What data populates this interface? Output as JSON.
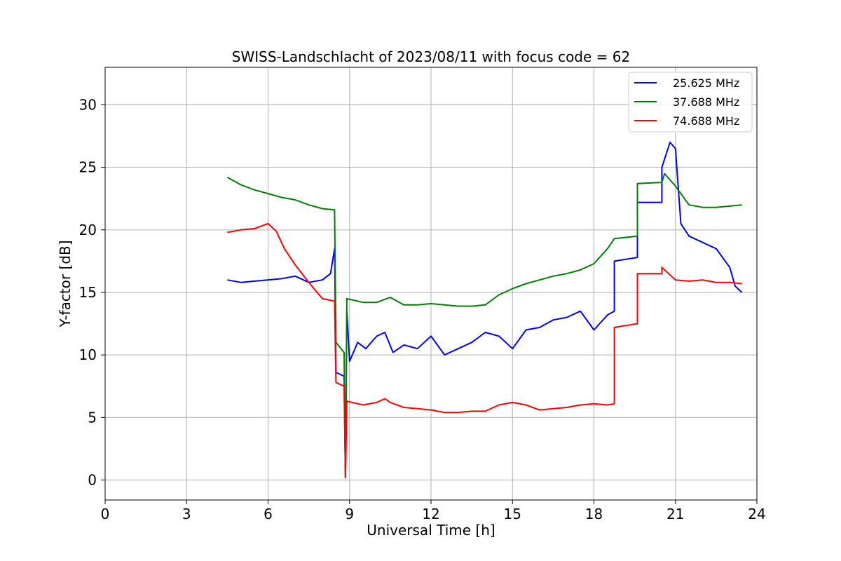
{
  "chart_data": {
    "type": "line",
    "title": "SWISS-Landschlacht of 2023/08/11 with focus code = 62",
    "xlabel": "Universal Time [h]",
    "ylabel": "Y-factor [dB]",
    "xlim": [
      0,
      24
    ],
    "ylim": [
      -1.6,
      33
    ],
    "xticks": [
      0,
      3,
      6,
      9,
      12,
      15,
      18,
      21,
      24
    ],
    "yticks": [
      0,
      5,
      10,
      15,
      20,
      25,
      30
    ],
    "grid": true,
    "legend_position": "top-right",
    "series": [
      {
        "name": "25.625 MHz",
        "color": "#0000ff",
        "points": [
          [
            4.5,
            16.0
          ],
          [
            5.0,
            15.8
          ],
          [
            5.5,
            15.9
          ],
          [
            6.0,
            16.0
          ],
          [
            6.5,
            16.1
          ],
          [
            7.0,
            16.3
          ],
          [
            7.5,
            15.8
          ],
          [
            8.0,
            16.0
          ],
          [
            8.3,
            16.5
          ],
          [
            8.45,
            18.5
          ],
          [
            8.5,
            8.6
          ],
          [
            8.8,
            8.3
          ],
          [
            8.85,
            0.2
          ],
          [
            8.9,
            13.5
          ],
          [
            9.0,
            9.5
          ],
          [
            9.3,
            11.0
          ],
          [
            9.6,
            10.5
          ],
          [
            10.0,
            11.5
          ],
          [
            10.3,
            11.8
          ],
          [
            10.6,
            10.2
          ],
          [
            11.0,
            10.8
          ],
          [
            11.5,
            10.5
          ],
          [
            12.0,
            11.5
          ],
          [
            12.5,
            10.0
          ],
          [
            13.0,
            10.5
          ],
          [
            13.5,
            11.0
          ],
          [
            14.0,
            11.8
          ],
          [
            14.5,
            11.5
          ],
          [
            15.0,
            10.5
          ],
          [
            15.5,
            12.0
          ],
          [
            16.0,
            12.2
          ],
          [
            16.5,
            12.8
          ],
          [
            17.0,
            13.0
          ],
          [
            17.5,
            13.5
          ],
          [
            18.0,
            12.0
          ],
          [
            18.5,
            13.2
          ],
          [
            18.75,
            13.5
          ],
          [
            18.75,
            17.5
          ],
          [
            19.6,
            17.8
          ],
          [
            19.6,
            22.2
          ],
          [
            20.5,
            22.2
          ],
          [
            20.5,
            25.0
          ],
          [
            20.8,
            27.0
          ],
          [
            21.0,
            26.5
          ],
          [
            21.2,
            20.5
          ],
          [
            21.5,
            19.5
          ],
          [
            22.0,
            19.0
          ],
          [
            22.5,
            18.5
          ],
          [
            23.0,
            17.0
          ],
          [
            23.2,
            15.5
          ],
          [
            23.45,
            15.0
          ]
        ]
      },
      {
        "name": "37.688 MHz",
        "color": "#008000",
        "points": [
          [
            4.5,
            24.2
          ],
          [
            5.0,
            23.6
          ],
          [
            5.5,
            23.2
          ],
          [
            6.0,
            22.9
          ],
          [
            6.5,
            22.6
          ],
          [
            7.0,
            22.4
          ],
          [
            7.5,
            22.0
          ],
          [
            8.0,
            21.7
          ],
          [
            8.45,
            21.6
          ],
          [
            8.5,
            11.0
          ],
          [
            8.8,
            10.2
          ],
          [
            8.85,
            0.2
          ],
          [
            8.9,
            14.5
          ],
          [
            9.5,
            14.2
          ],
          [
            10.0,
            14.2
          ],
          [
            10.5,
            14.6
          ],
          [
            11.0,
            14.0
          ],
          [
            11.5,
            14.0
          ],
          [
            12.0,
            14.1
          ],
          [
            12.5,
            14.0
          ],
          [
            13.0,
            13.9
          ],
          [
            13.5,
            13.9
          ],
          [
            14.0,
            14.0
          ],
          [
            14.5,
            14.8
          ],
          [
            15.0,
            15.3
          ],
          [
            15.5,
            15.7
          ],
          [
            16.0,
            16.0
          ],
          [
            16.5,
            16.3
          ],
          [
            17.0,
            16.5
          ],
          [
            17.5,
            16.8
          ],
          [
            18.0,
            17.3
          ],
          [
            18.5,
            18.5
          ],
          [
            18.75,
            19.3
          ],
          [
            19.6,
            19.5
          ],
          [
            19.6,
            23.7
          ],
          [
            20.5,
            23.8
          ],
          [
            20.6,
            24.5
          ],
          [
            21.0,
            23.5
          ],
          [
            21.5,
            22.0
          ],
          [
            22.0,
            21.8
          ],
          [
            22.5,
            21.8
          ],
          [
            23.0,
            21.9
          ],
          [
            23.45,
            22.0
          ]
        ]
      },
      {
        "name": "74.688 MHz",
        "color": "#ff0000",
        "points": [
          [
            4.5,
            19.8
          ],
          [
            5.0,
            20.0
          ],
          [
            5.5,
            20.1
          ],
          [
            6.0,
            20.5
          ],
          [
            6.3,
            19.9
          ],
          [
            6.6,
            18.5
          ],
          [
            7.0,
            17.2
          ],
          [
            7.5,
            15.8
          ],
          [
            8.0,
            14.5
          ],
          [
            8.45,
            14.3
          ],
          [
            8.5,
            7.8
          ],
          [
            8.8,
            7.5
          ],
          [
            8.85,
            0.2
          ],
          [
            8.9,
            6.3
          ],
          [
            9.5,
            6.0
          ],
          [
            10.0,
            6.2
          ],
          [
            10.3,
            6.5
          ],
          [
            10.5,
            6.2
          ],
          [
            11.0,
            5.8
          ],
          [
            11.5,
            5.7
          ],
          [
            12.0,
            5.6
          ],
          [
            12.5,
            5.4
          ],
          [
            13.0,
            5.4
          ],
          [
            13.5,
            5.5
          ],
          [
            14.0,
            5.5
          ],
          [
            14.5,
            6.0
          ],
          [
            15.0,
            6.2
          ],
          [
            15.5,
            6.0
          ],
          [
            16.0,
            5.6
          ],
          [
            16.5,
            5.7
          ],
          [
            17.0,
            5.8
          ],
          [
            17.5,
            6.0
          ],
          [
            18.0,
            6.1
          ],
          [
            18.5,
            6.0
          ],
          [
            18.75,
            6.1
          ],
          [
            18.75,
            12.2
          ],
          [
            19.6,
            12.5
          ],
          [
            19.6,
            16.5
          ],
          [
            20.5,
            16.5
          ],
          [
            20.5,
            17.0
          ],
          [
            21.0,
            16.0
          ],
          [
            21.5,
            15.9
          ],
          [
            22.0,
            16.0
          ],
          [
            22.5,
            15.8
          ],
          [
            23.0,
            15.8
          ],
          [
            23.45,
            15.7
          ]
        ]
      }
    ]
  }
}
